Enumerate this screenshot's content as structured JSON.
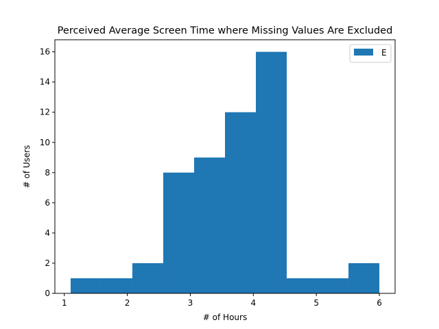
{
  "chart_data": {
    "type": "bar",
    "subtype": "histogram",
    "title": "Perceived Average Screen Time where Missing Values Are Excluded",
    "xlabel": "# of Hours",
    "ylabel": "# of Users",
    "xlim": [
      0.85,
      6.25
    ],
    "ylim": [
      0,
      16.8
    ],
    "xticks": [
      "1",
      "2",
      "3",
      "4",
      "5",
      "6"
    ],
    "yticks": [
      "0",
      "2",
      "4",
      "6",
      "8",
      "10",
      "12",
      "14",
      "16"
    ],
    "bin_edges": [
      1.1,
      1.59,
      2.08,
      2.57,
      3.06,
      3.55,
      4.04,
      4.53,
      5.02,
      5.51,
      6.0
    ],
    "values": [
      1,
      1,
      2,
      8,
      9,
      12,
      16,
      1,
      1,
      2
    ],
    "series": [
      {
        "name": "E",
        "color": "#1f77b4"
      }
    ],
    "legend_position": "top-right",
    "grid": false
  }
}
